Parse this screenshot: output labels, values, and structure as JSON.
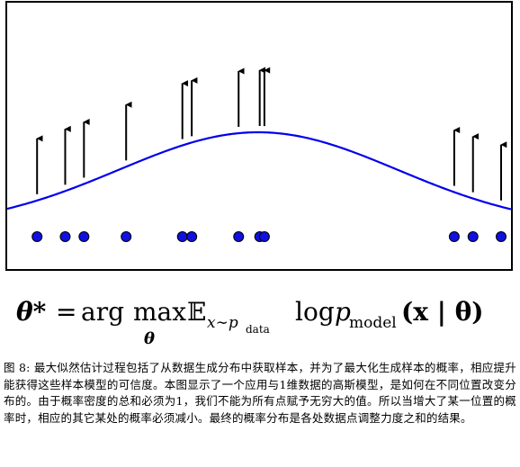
{
  "figure": {
    "curve_color": "#0000ee",
    "point_color": "#1010e0",
    "arrow_color": "#000000",
    "frame_color": "#000000",
    "datapoints": [
      {
        "x": 0.01
      },
      {
        "x": 0.07
      },
      {
        "x": 0.11
      },
      {
        "x": 0.2
      },
      {
        "x": 0.32
      },
      {
        "x": 0.34
      },
      {
        "x": 0.44
      },
      {
        "x": 0.485
      },
      {
        "x": 0.495
      },
      {
        "x": 0.9
      },
      {
        "x": 0.94
      },
      {
        "x": 1.0
      }
    ]
  },
  "formula": {
    "theta_star": "θ*",
    "equals": "=",
    "arg": "arg",
    "max": "max",
    "max_sub": "θ",
    "expectation": "𝔼",
    "exp_sub": "x∼p",
    "exp_sub2": "data",
    "log": "log",
    "p": "p",
    "p_sub": "model",
    "args": "(x | θ)"
  },
  "caption": {
    "text": "图 8: 最大似然估计过程包括了从数据生成分布中获取样本，并为了最大化生成样本的概率，相应提升能获得这些样本模型的可信度。本图显示了一个应用与1维数据的高斯模型，是如何在不同位置改变分布的。由于概率密度的总和必须为1，我们不能为所有点赋予无穷大的值。所以当增大了某一位置的概率时，相应的其它某处的概率必须减小。最终的概率分布是各处数据点调整力度之和的结果。"
  }
}
